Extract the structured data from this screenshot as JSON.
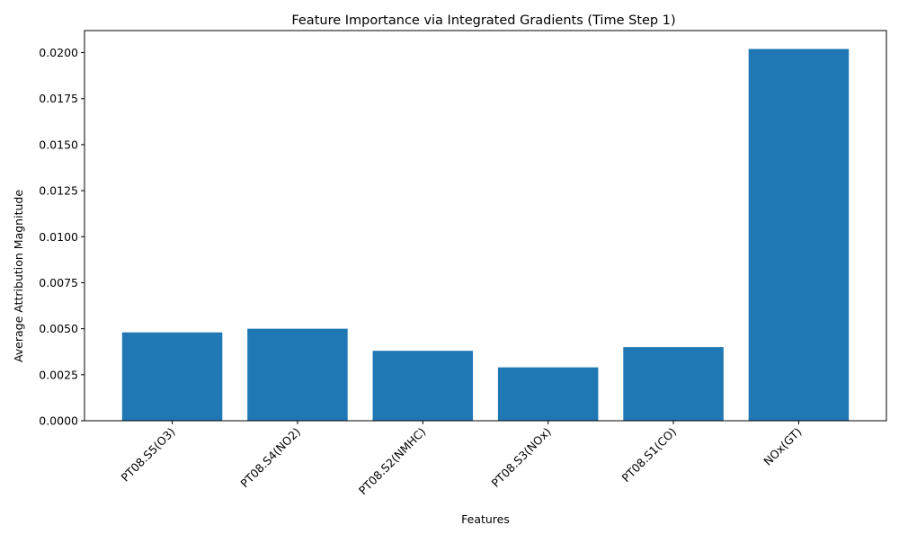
{
  "chart_data": {
    "type": "bar",
    "title": "Feature Importance via Integrated Gradients (Time Step 1)",
    "xlabel": "Features",
    "ylabel": "Average Attribution Magnitude",
    "categories": [
      "PT08.S5(O3)",
      "PT08.S4(NO2)",
      "PT08.S2(NMHC)",
      "PT08.S3(NOx)",
      "PT08.S1(CO)",
      "NOx(GT)"
    ],
    "values": [
      0.0048,
      0.005,
      0.0038,
      0.0029,
      0.004,
      0.0202
    ],
    "ylim": [
      0,
      0.0212
    ],
    "yticks": [
      "0.0000",
      "0.0025",
      "0.0050",
      "0.0075",
      "0.0100",
      "0.0125",
      "0.0150",
      "0.0175",
      "0.0200"
    ],
    "bar_color": "#1f77b4",
    "grid": false,
    "legend": "none"
  }
}
